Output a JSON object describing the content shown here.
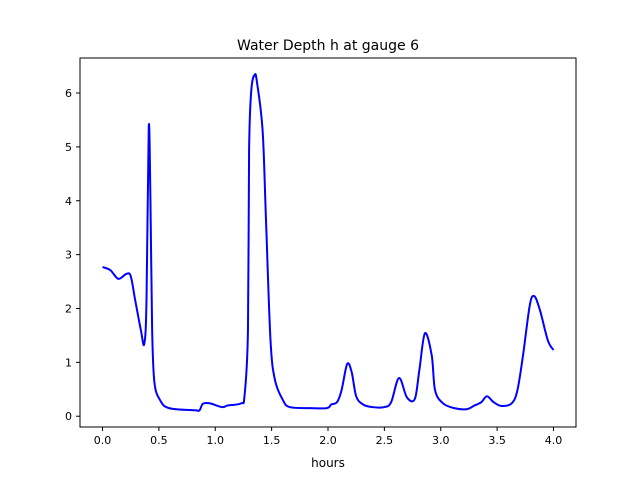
{
  "chart_data": {
    "type": "line",
    "title": "Water Depth h at gauge 6",
    "xlabel": "hours",
    "ylabel": "",
    "xlim": [
      -0.2,
      4.2
    ],
    "ylim": [
      -0.2,
      6.65
    ],
    "xticks": [
      0.0,
      0.5,
      1.0,
      1.5,
      2.0,
      2.5,
      3.0,
      3.5,
      4.0
    ],
    "xtick_labels": [
      "0.0",
      "0.5",
      "1.0",
      "1.5",
      "2.0",
      "2.5",
      "3.0",
      "3.5",
      "4.0"
    ],
    "yticks": [
      0,
      1,
      2,
      3,
      4,
      5,
      6
    ],
    "ytick_labels": [
      "0",
      "1",
      "2",
      "3",
      "4",
      "5",
      "6"
    ],
    "grid": false,
    "series": [
      {
        "name": "h",
        "color": "#0000ff",
        "x": [
          0,
          0.07,
          0.14,
          0.21,
          0.25,
          0.29,
          0.34,
          0.37,
          0.39,
          0.41,
          0.425,
          0.44,
          0.46,
          0.51,
          0.59,
          0.82,
          0.86,
          0.89,
          0.95,
          1.06,
          1.11,
          1.23,
          1.26,
          1.29,
          1.3,
          1.32,
          1.35,
          1.37,
          1.42,
          1.45,
          1.49,
          1.53,
          1.6,
          1.66,
          1.84,
          1.99,
          2.03,
          2.08,
          2.12,
          2.17,
          2.21,
          2.25,
          2.31,
          2.39,
          2.5,
          2.56,
          2.63,
          2.7,
          2.77,
          2.81,
          2.86,
          2.92,
          2.95,
          3.02,
          3.12,
          3.23,
          3.3,
          3.36,
          3.41,
          3.47,
          3.54,
          3.63,
          3.68,
          3.73,
          3.79,
          3.83,
          3.88,
          3.95,
          4.0
        ],
        "y": [
          2.77,
          2.71,
          2.55,
          2.64,
          2.6,
          2.15,
          1.6,
          1.34,
          2.15,
          5.37,
          4.0,
          1.6,
          0.63,
          0.3,
          0.15,
          0.11,
          0.11,
          0.23,
          0.24,
          0.17,
          0.2,
          0.24,
          0.39,
          1.6,
          4.94,
          6.06,
          6.34,
          6.2,
          5.3,
          3.64,
          1.41,
          0.67,
          0.3,
          0.17,
          0.15,
          0.15,
          0.22,
          0.26,
          0.48,
          0.97,
          0.82,
          0.37,
          0.22,
          0.17,
          0.17,
          0.26,
          0.71,
          0.35,
          0.32,
          0.85,
          1.54,
          1.13,
          0.48,
          0.24,
          0.15,
          0.13,
          0.2,
          0.26,
          0.37,
          0.26,
          0.19,
          0.24,
          0.48,
          1.13,
          2.06,
          2.23,
          1.97,
          1.41,
          1.23
        ]
      }
    ]
  }
}
